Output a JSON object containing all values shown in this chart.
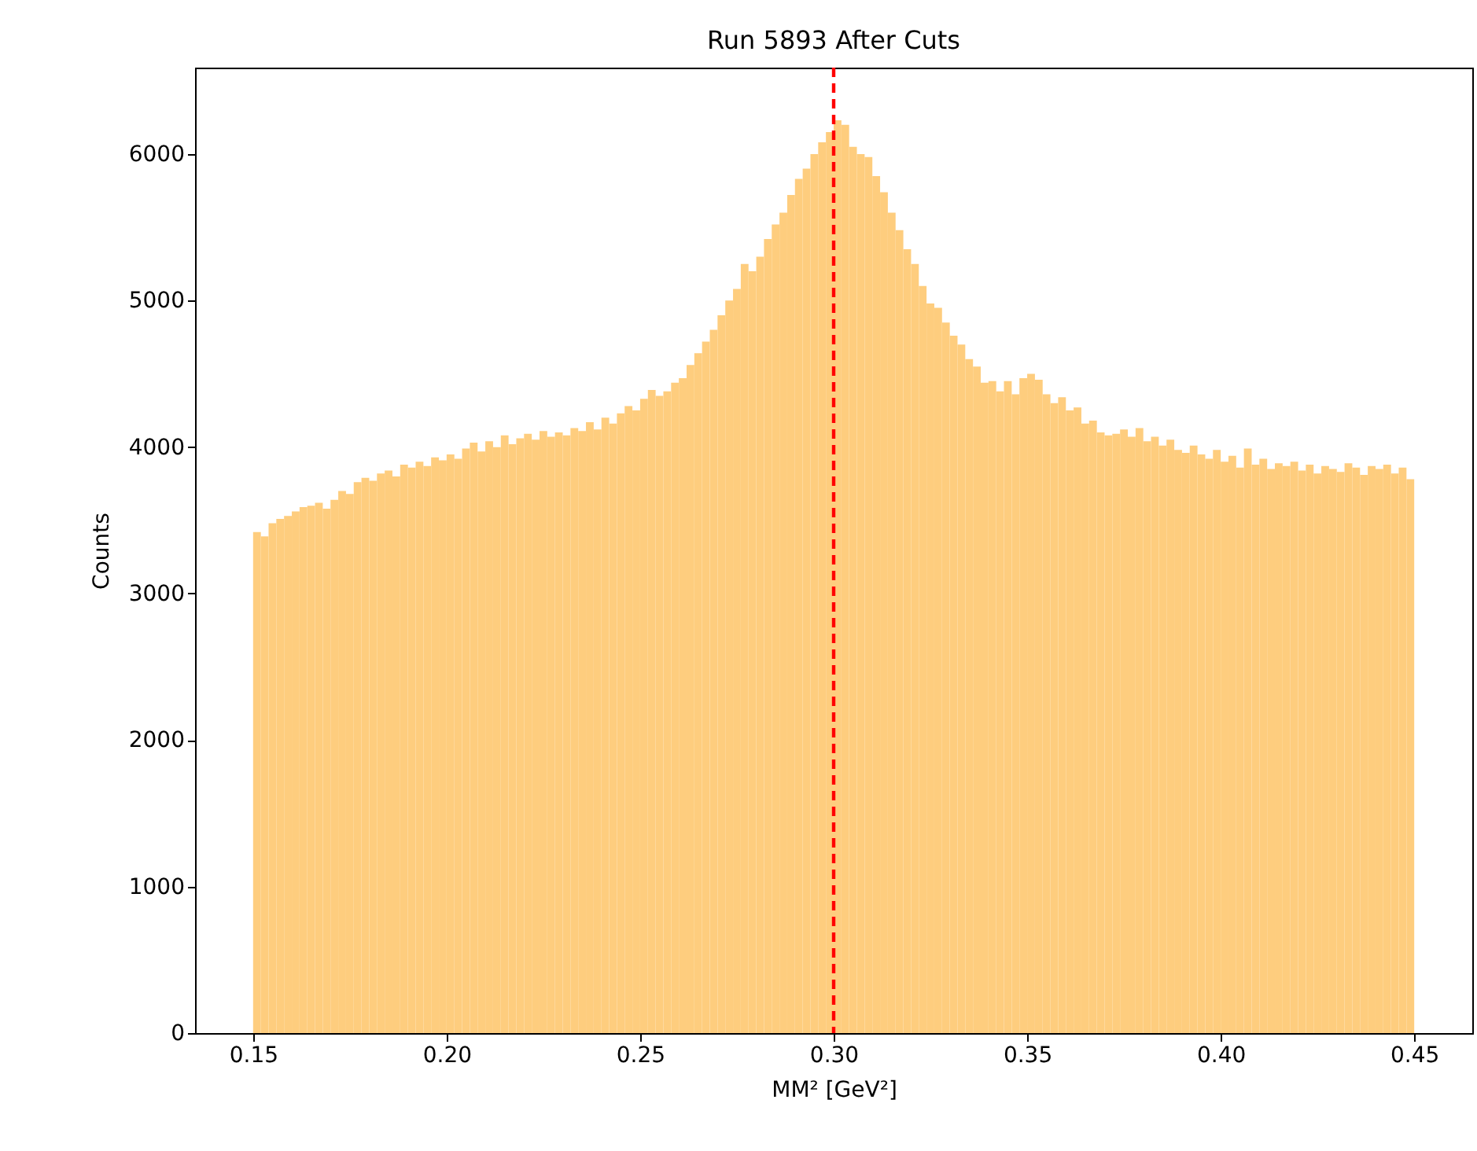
{
  "chart_data": {
    "type": "histogram",
    "title": "Run 5893 After Cuts",
    "xlabel": "MM² [GeV²]",
    "ylabel": "Counts",
    "color": "#fecd7e",
    "bins": [
      0.15,
      0.152,
      0.154,
      0.156,
      0.158,
      0.16,
      0.162,
      0.164,
      0.166,
      0.168,
      0.17,
      0.172,
      0.174,
      0.176,
      0.178,
      0.18,
      0.182,
      0.184,
      0.186,
      0.188,
      0.19,
      0.192,
      0.194,
      0.196,
      0.198,
      0.2,
      0.202,
      0.204,
      0.206,
      0.208,
      0.21,
      0.212,
      0.214,
      0.216,
      0.218,
      0.22,
      0.222,
      0.224,
      0.226,
      0.228,
      0.23,
      0.232,
      0.234,
      0.236,
      0.238,
      0.24,
      0.242,
      0.244,
      0.246,
      0.248,
      0.25,
      0.252,
      0.254,
      0.256,
      0.258,
      0.26,
      0.262,
      0.264,
      0.266,
      0.268,
      0.27,
      0.272,
      0.274,
      0.276,
      0.278,
      0.28,
      0.282,
      0.284,
      0.286,
      0.288,
      0.29,
      0.292,
      0.294,
      0.296,
      0.298,
      0.3,
      0.302,
      0.304,
      0.306,
      0.308,
      0.31,
      0.312,
      0.314,
      0.316,
      0.318,
      0.32,
      0.322,
      0.324,
      0.326,
      0.328,
      0.33,
      0.332,
      0.334,
      0.336,
      0.338,
      0.34,
      0.342,
      0.344,
      0.346,
      0.348,
      0.35,
      0.352,
      0.354,
      0.356,
      0.358,
      0.36,
      0.362,
      0.364,
      0.366,
      0.368,
      0.37,
      0.372,
      0.374,
      0.376,
      0.378,
      0.38,
      0.382,
      0.384,
      0.386,
      0.388,
      0.39,
      0.392,
      0.394,
      0.396,
      0.398,
      0.4,
      0.402,
      0.404,
      0.406,
      0.408,
      0.41,
      0.412,
      0.414,
      0.416,
      0.418,
      0.42,
      0.422,
      0.424,
      0.426,
      0.428,
      0.43,
      0.432,
      0.434,
      0.436,
      0.438,
      0.44,
      0.442,
      0.444,
      0.446,
      0.448,
      0.45
    ],
    "values": [
      3420,
      3390,
      3480,
      3510,
      3530,
      3560,
      3590,
      3600,
      3620,
      3580,
      3640,
      3700,
      3680,
      3760,
      3790,
      3770,
      3820,
      3840,
      3800,
      3880,
      3860,
      3900,
      3870,
      3930,
      3910,
      3950,
      3920,
      3990,
      4030,
      3970,
      4040,
      4000,
      4080,
      4020,
      4060,
      4090,
      4050,
      4110,
      4070,
      4100,
      4080,
      4130,
      4110,
      4170,
      4120,
      4200,
      4160,
      4230,
      4280,
      4250,
      4330,
      4390,
      4350,
      4380,
      4440,
      4470,
      4560,
      4640,
      4720,
      4800,
      4900,
      5000,
      5080,
      5250,
      5200,
      5300,
      5420,
      5520,
      5600,
      5720,
      5830,
      5900,
      6000,
      6080,
      6150,
      6230,
      6200,
      6050,
      6000,
      5980,
      5850,
      5740,
      5600,
      5480,
      5350,
      5250,
      5100,
      4980,
      4950,
      4850,
      4760,
      4700,
      4600,
      4550,
      4440,
      4450,
      4380,
      4450,
      4360,
      4470,
      4500,
      4460,
      4360,
      4300,
      4340,
      4250,
      4270,
      4160,
      4180,
      4100,
      4080,
      4090,
      4120,
      4070,
      4130,
      4040,
      4070,
      4010,
      4050,
      3980,
      3960,
      4010,
      3950,
      3920,
      3980,
      3900,
      3940,
      3860,
      3990,
      3880,
      3920,
      3850,
      3890,
      3870,
      3900,
      3840,
      3880,
      3820,
      3870,
      3850,
      3830,
      3890,
      3860,
      3810,
      3870,
      3850,
      3880,
      3820,
      3860,
      3780
    ],
    "xlim": [
      0.135,
      0.465
    ],
    "xticks": [
      0.15,
      {
        "value": 0.2,
        "label": "0.20"
      },
      0.25,
      {
        "value": 0.3,
        "label": "0.30"
      },
      0.35,
      {
        "value": 0.4,
        "label": "0.40"
      },
      0.45
    ],
    "ylim": [
      0,
      6590
    ],
    "yticks": [
      0,
      1000,
      2000,
      3000,
      4000,
      5000,
      6000
    ],
    "ref_lines": [
      {
        "axis": "x",
        "value": 0.3,
        "color": "#ff0000",
        "line_style": "dashed"
      }
    ]
  }
}
